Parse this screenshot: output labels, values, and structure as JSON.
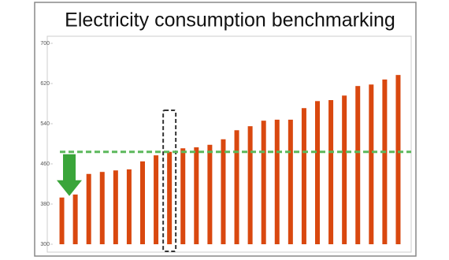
{
  "chart_data": {
    "type": "bar",
    "title": "Electricity consumption benchmarking",
    "values": [
      393,
      399,
      440,
      444,
      447,
      449,
      465,
      477,
      484,
      491,
      493,
      498,
      509,
      527,
      535,
      546,
      548,
      548,
      571,
      585,
      587,
      596,
      615,
      618,
      628,
      637
    ],
    "color": "#d9480f",
    "ylim": [
      300,
      700
    ],
    "yticks": [
      300,
      380,
      460,
      540,
      620,
      700
    ],
    "benchmark": 484,
    "benchmark_color": "#5cb85c",
    "highlight_index": 8
  }
}
